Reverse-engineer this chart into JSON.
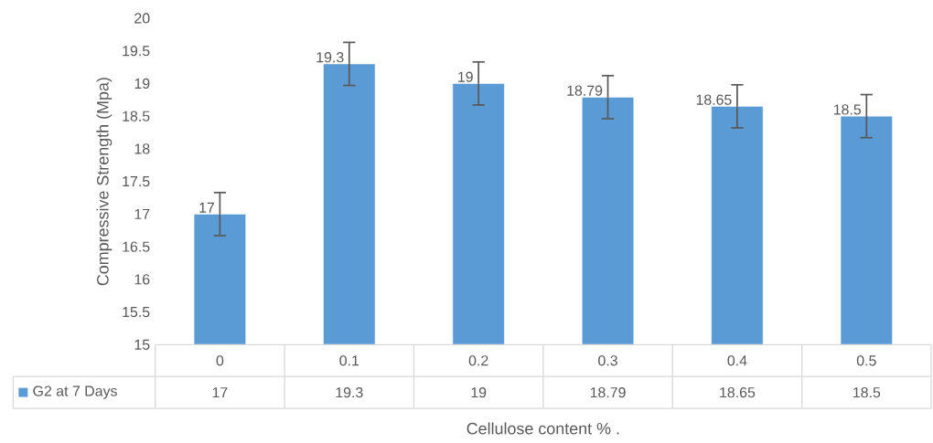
{
  "chart_data": {
    "type": "bar",
    "xlabel": "Cellulose content % .",
    "ylabel": "Compressive Strength (Mpa)",
    "categories": [
      "0",
      "0.1",
      "0.2",
      "0.3",
      "0.4",
      "0.5"
    ],
    "series": [
      {
        "name": "G2 at 7 Days",
        "color": "#5b9bd5",
        "values": [
          17,
          19.3,
          19,
          18.79,
          18.65,
          18.5
        ],
        "errors": [
          0.33,
          0.33,
          0.33,
          0.33,
          0.33,
          0.33
        ]
      }
    ],
    "ylim": [
      15,
      20
    ],
    "yticks": [
      15,
      15.5,
      16,
      16.5,
      17,
      17.5,
      18,
      18.5,
      19,
      19.5,
      20
    ],
    "annotations": [
      "17",
      "19.3",
      "19",
      "18.79",
      "18.65",
      "18.5"
    ],
    "data_labels": true,
    "legend": "bottom"
  }
}
